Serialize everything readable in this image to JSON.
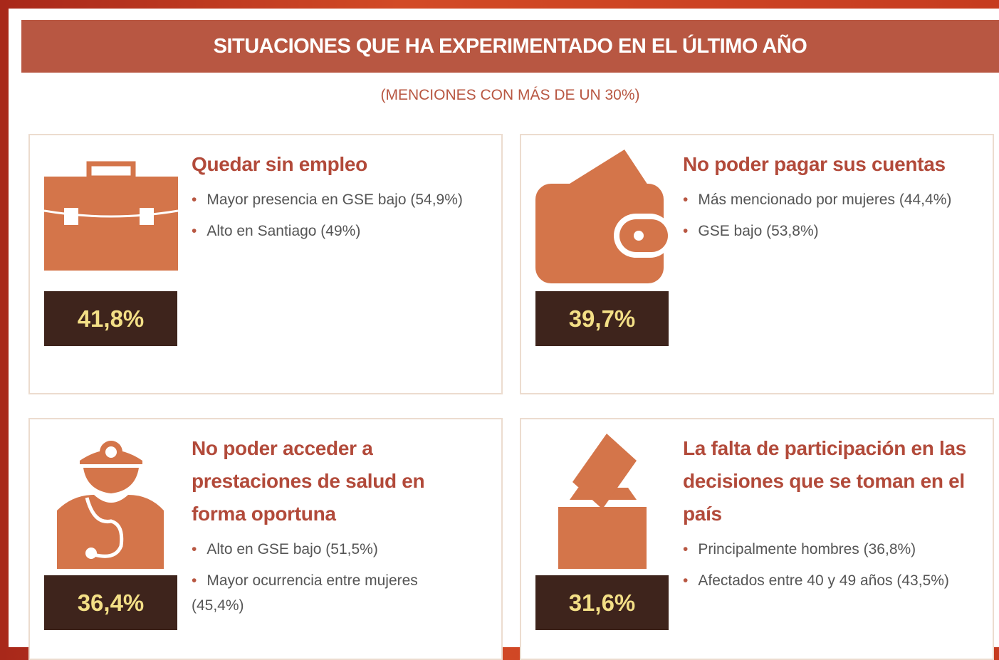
{
  "header": {
    "title": "SITUACIONES QUE HA EXPERIMENTADO EN EL ÚLTIMO AÑO",
    "subtitle": "(MENCIONES CON MÁS DE UN 30%)"
  },
  "cards": [
    {
      "title": "Quedar sin empleo",
      "value": "41,8%",
      "bullets": [
        "Mayor presencia en GSE bajo (54,9%)",
        "Alto en Santiago (49%)"
      ]
    },
    {
      "title": "No poder pagar sus cuentas",
      "value": "39,7%",
      "bullets": [
        "Más mencionado por mujeres (44,4%)",
        "GSE bajo (53,8%)"
      ]
    },
    {
      "title": "No poder acceder a prestaciones de salud en forma oportuna",
      "value": "36,4%",
      "bullets": [
        "Alto en GSE bajo (51,5%)",
        "Mayor ocurrencia entre mujeres (45,4%)"
      ]
    },
    {
      "title": "La falta de participación en las decisiones que se toman en el país",
      "value": "31,6%",
      "bullets": [
        "Principalmente hombres (36,8%)",
        "Afectados entre 40 y 49 años (43,5%)"
      ]
    }
  ]
}
